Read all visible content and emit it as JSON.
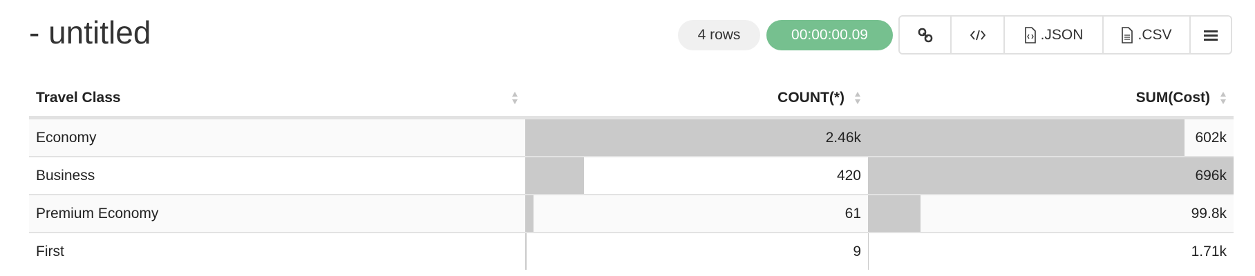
{
  "title": "- untitled",
  "row_count": "4 rows",
  "elapsed": "00:00:00.09",
  "colors": {
    "timer": "#76c08f",
    "bar": "#cacaca"
  },
  "toolbar": [
    {
      "icon": "link-icon",
      "label": ""
    },
    {
      "icon": "code-icon",
      "label": ""
    },
    {
      "icon": "json-file-icon",
      "label": ".JSON"
    },
    {
      "icon": "csv-file-icon",
      "label": ".CSV"
    },
    {
      "icon": "menu-icon",
      "label": ""
    }
  ],
  "table": {
    "columns": [
      "Travel Class",
      "COUNT(*)",
      "SUM(Cost)"
    ],
    "rows": [
      {
        "class": "Economy",
        "count": "2.46k",
        "count_value": 2460,
        "sum": "602k",
        "sum_value": 602000
      },
      {
        "class": "Business",
        "count": "420",
        "count_value": 420,
        "sum": "696k",
        "sum_value": 696000
      },
      {
        "class": "Premium Economy",
        "count": "61",
        "count_value": 61,
        "sum": "99.8k",
        "sum_value": 99800
      },
      {
        "class": "First",
        "count": "9",
        "count_value": 9,
        "sum": "1.71k",
        "sum_value": 1710
      }
    ]
  }
}
